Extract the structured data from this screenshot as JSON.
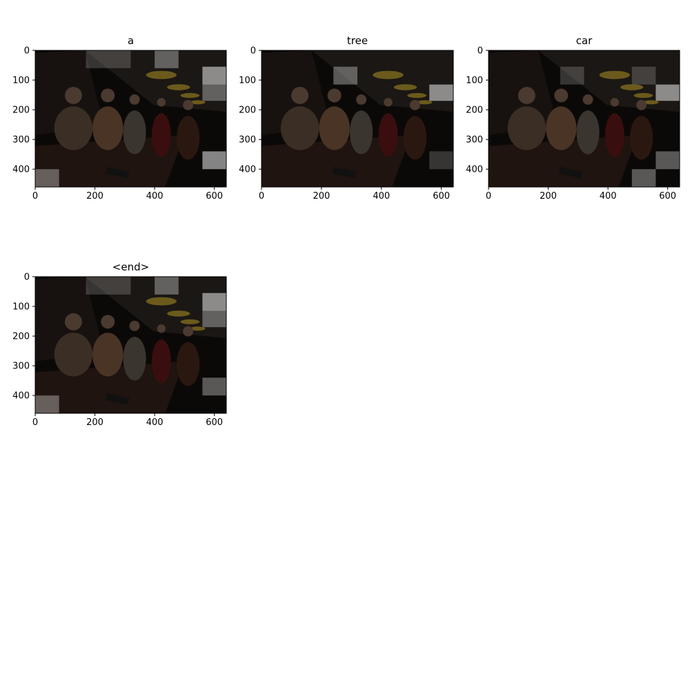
{
  "chart_data": [
    {
      "type": "image",
      "title": "a",
      "xlim": [
        0,
        640
      ],
      "ylim": [
        460,
        0
      ],
      "xticks": [
        0,
        200,
        400,
        600
      ],
      "yticks": [
        0,
        100,
        200,
        300,
        400
      ],
      "xlabel": "",
      "ylabel": "",
      "highlight_regions": [
        {
          "x": [
            170,
            320
          ],
          "y": [
            0,
            60
          ],
          "brightness": "low"
        },
        {
          "x": [
            400,
            480
          ],
          "y": [
            0,
            60
          ],
          "brightness": "medium"
        },
        {
          "x": [
            560,
            640
          ],
          "y": [
            55,
            115
          ],
          "brightness": "high"
        },
        {
          "x": [
            560,
            640
          ],
          "y": [
            115,
            170
          ],
          "brightness": "medium"
        },
        {
          "x": [
            560,
            640
          ],
          "y": [
            340,
            400
          ],
          "brightness": "high"
        },
        {
          "x": [
            0,
            80
          ],
          "y": [
            400,
            460
          ],
          "brightness": "medium"
        }
      ]
    },
    {
      "type": "image",
      "title": "tree",
      "xlim": [
        0,
        640
      ],
      "ylim": [
        460,
        0
      ],
      "xticks": [
        0,
        200,
        400,
        600
      ],
      "yticks": [
        0,
        100,
        200,
        300,
        400
      ],
      "xlabel": "",
      "ylabel": "",
      "highlight_regions": [
        {
          "x": [
            240,
            320
          ],
          "y": [
            55,
            115
          ],
          "brightness": "medium"
        },
        {
          "x": [
            560,
            640
          ],
          "y": [
            115,
            170
          ],
          "brightness": "high"
        },
        {
          "x": [
            560,
            640
          ],
          "y": [
            340,
            400
          ],
          "brightness": "low"
        }
      ]
    },
    {
      "type": "image",
      "title": "car",
      "xlim": [
        0,
        640
      ],
      "ylim": [
        460,
        0
      ],
      "xticks": [
        0,
        200,
        400,
        600
      ],
      "yticks": [
        0,
        100,
        200,
        300,
        400
      ],
      "xlabel": "",
      "ylabel": "",
      "highlight_regions": [
        {
          "x": [
            240,
            320
          ],
          "y": [
            55,
            115
          ],
          "brightness": "low"
        },
        {
          "x": [
            480,
            560
          ],
          "y": [
            55,
            115
          ],
          "brightness": "low"
        },
        {
          "x": [
            560,
            640
          ],
          "y": [
            115,
            170
          ],
          "brightness": "high"
        },
        {
          "x": [
            560,
            640
          ],
          "y": [
            340,
            400
          ],
          "brightness": "medium"
        },
        {
          "x": [
            480,
            560
          ],
          "y": [
            400,
            460
          ],
          "brightness": "medium"
        }
      ]
    },
    {
      "type": "image",
      "title": "<end>",
      "xlim": [
        0,
        640
      ],
      "ylim": [
        460,
        0
      ],
      "xticks": [
        0,
        200,
        400,
        600
      ],
      "yticks": [
        0,
        100,
        200,
        300,
        400
      ],
      "xlabel": "",
      "ylabel": "",
      "highlight_regions": [
        {
          "x": [
            170,
            320
          ],
          "y": [
            0,
            60
          ],
          "brightness": "low"
        },
        {
          "x": [
            400,
            480
          ],
          "y": [
            0,
            60
          ],
          "brightness": "medium"
        },
        {
          "x": [
            560,
            640
          ],
          "y": [
            55,
            115
          ],
          "brightness": "high"
        },
        {
          "x": [
            560,
            640
          ],
          "y": [
            115,
            170
          ],
          "brightness": "medium"
        },
        {
          "x": [
            560,
            640
          ],
          "y": [
            340,
            400
          ],
          "brightness": "medium"
        },
        {
          "x": [
            0,
            80
          ],
          "y": [
            400,
            460
          ],
          "brightness": "medium"
        }
      ]
    }
  ],
  "colors": {
    "scene_dark": "#0b0908",
    "wall": "#1a1714",
    "bar_counter": "#1f140f",
    "highlight": "#ffffff",
    "axis": "#000000"
  },
  "brightness_levels": {
    "low": 0.18,
    "medium": 0.32,
    "high": 0.5
  }
}
